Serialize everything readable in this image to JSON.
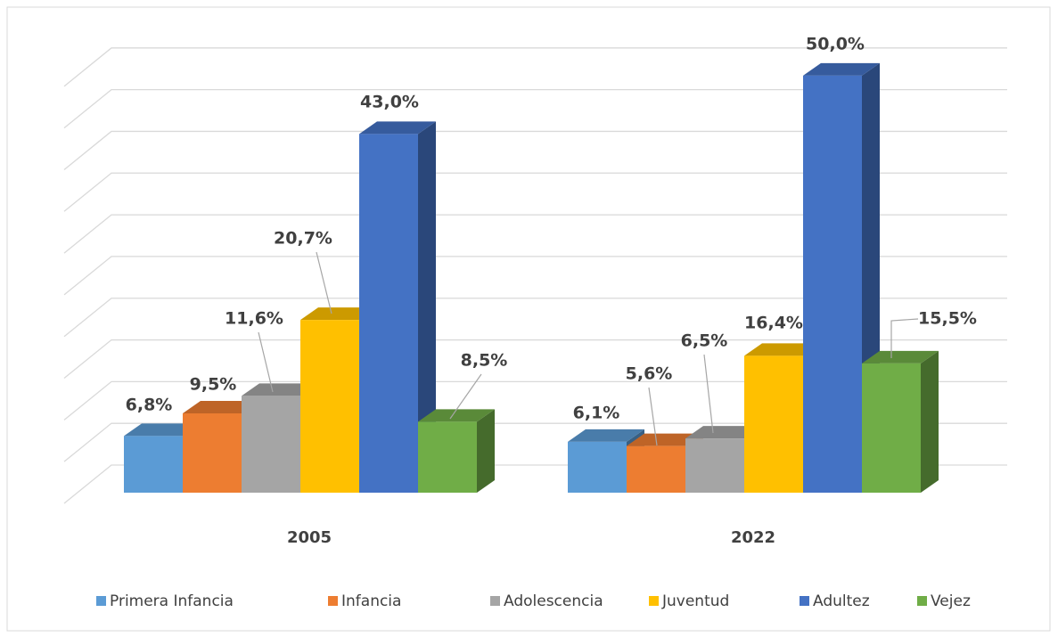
{
  "chart_data": {
    "type": "bar3d",
    "categories": [
      "2005",
      "2022"
    ],
    "series": [
      {
        "name": "Primera Infancia",
        "color": "#5b9bd5",
        "values": [
          6.8,
          6.1
        ],
        "value_labels": [
          "6,8%",
          "6,1%"
        ]
      },
      {
        "name": "Infancia",
        "color": "#ed7d31",
        "values": [
          9.5,
          5.6
        ],
        "value_labels": [
          "9,5%",
          "5,6%"
        ]
      },
      {
        "name": "Adolescencia",
        "color": "#a5a5a5",
        "values": [
          11.6,
          6.5
        ],
        "value_labels": [
          "11,6%",
          "6,5%"
        ]
      },
      {
        "name": "Juventud",
        "color": "#ffc000",
        "values": [
          20.7,
          16.4
        ],
        "value_labels": [
          "20,7%",
          "16,4%"
        ]
      },
      {
        "name": "Adultez",
        "color": "#4472c4",
        "values": [
          43.0,
          50.0
        ],
        "value_labels": [
          "43,0%",
          "50,0%"
        ]
      },
      {
        "name": "Vejez",
        "color": "#70ad47",
        "values": [
          8.5,
          15.5
        ],
        "value_labels": [
          "8,5%",
          "15,5%"
        ]
      }
    ],
    "ylim": [
      0,
      55
    ],
    "yticks": [
      0,
      5,
      10,
      15,
      20,
      25,
      30,
      35,
      40,
      45,
      50
    ],
    "grid": true,
    "legend": "bottom"
  }
}
